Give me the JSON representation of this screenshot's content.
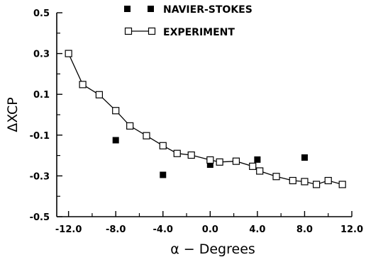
{
  "chart_data": {
    "type": "scatter",
    "title": "",
    "xlabel": "α − Degrees",
    "ylabel": "ΔXCP",
    "xlim": [
      -13.0,
      12.0
    ],
    "ylim": [
      -0.5,
      0.5
    ],
    "x_ticks": [
      -12.0,
      -8.0,
      -4.0,
      0.0,
      4.0,
      8.0,
      12.0
    ],
    "x_tick_labels": [
      "-12.0",
      "-8.0",
      "-4.0",
      "0.0",
      "4.0",
      "8.0",
      "12.0"
    ],
    "y_ticks": [
      0.5,
      0.3,
      0.1,
      -0.1,
      -0.3,
      -0.5
    ],
    "y_tick_labels": [
      "0.5",
      "0.3",
      "0.1",
      "-0.1",
      "-0.3",
      "-0.5"
    ],
    "grid": false,
    "legend_position": "top-center",
    "series": [
      {
        "name": "NAVIER-STOKES",
        "marker": "filled-square",
        "line": false,
        "color": "#000000",
        "x": [
          -8.0,
          -4.0,
          0.0,
          4.0,
          8.0
        ],
        "y": [
          -0.125,
          -0.295,
          -0.245,
          -0.22,
          -0.21
        ]
      },
      {
        "name": "EXPERIMENT",
        "marker": "open-square",
        "line": true,
        "color": "#000000",
        "x": [
          -12.0,
          -10.8,
          -9.4,
          -8.0,
          -6.8,
          -5.4,
          -4.0,
          -2.8,
          -1.6,
          0.0,
          0.8,
          2.2,
          3.6,
          4.2,
          5.6,
          7.0,
          8.0,
          9.0,
          10.0,
          11.2
        ],
        "y": [
          0.3,
          0.148,
          0.098,
          0.02,
          -0.055,
          -0.103,
          -0.152,
          -0.19,
          -0.198,
          -0.222,
          -0.232,
          -0.228,
          -0.253,
          -0.276,
          -0.303,
          -0.323,
          -0.328,
          -0.342,
          -0.323,
          -0.342
        ]
      }
    ]
  }
}
